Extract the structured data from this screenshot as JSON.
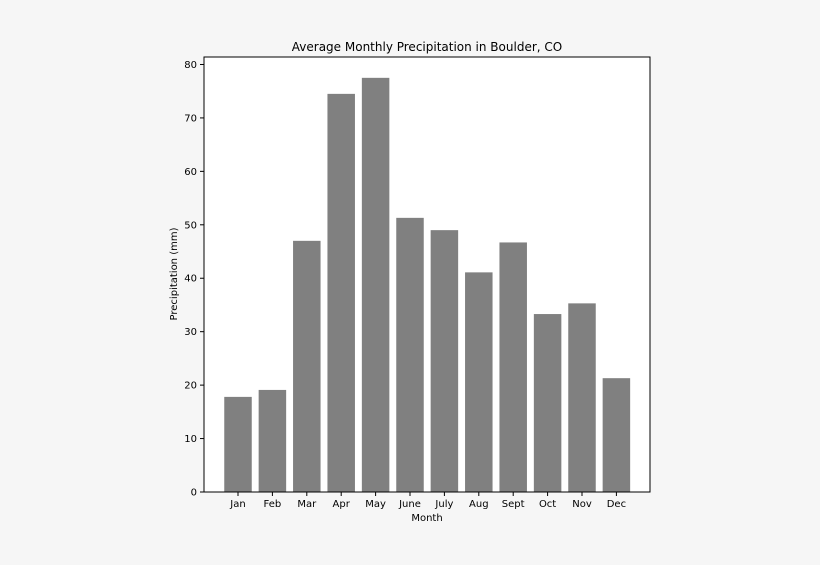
{
  "chart_data": {
    "type": "bar",
    "title": "Average Monthly Precipitation in Boulder, CO",
    "xlabel": "Month",
    "ylabel": "Precipitation (mm)",
    "categories": [
      "Jan",
      "Feb",
      "Mar",
      "Apr",
      "May",
      "June",
      "July",
      "Aug",
      "Sept",
      "Oct",
      "Nov",
      "Dec"
    ],
    "values": [
      17.8,
      19.1,
      47.0,
      74.5,
      77.5,
      51.3,
      49.0,
      41.1,
      46.7,
      33.3,
      35.3,
      21.3
    ],
    "ylim": [
      0,
      81.4
    ],
    "yticks": [
      0,
      10,
      20,
      30,
      40,
      50,
      60,
      70,
      80
    ],
    "grid": false,
    "legend": "none",
    "colors": {
      "bar": "#808080",
      "plot_background": "#ffffff",
      "figure_background": "#f6f6f6",
      "axis": "#000000"
    }
  }
}
